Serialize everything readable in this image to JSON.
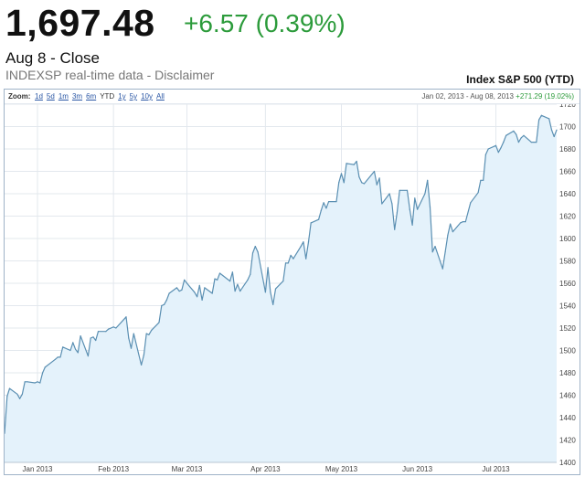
{
  "quote": {
    "price": "1,697.48",
    "change": "+6.57 (0.39%)",
    "date_close": "Aug 8 - Close",
    "source_text": "INDEXSP real-time data - Disclaimer"
  },
  "chart_header": {
    "title": "Index S&P 500 (YTD)",
    "zoom_label": "Zoom:",
    "zoom_options": [
      "1d",
      "5d",
      "1m",
      "3m",
      "6m",
      "YTD",
      "1y",
      "5y",
      "10y",
      "All"
    ],
    "active_zoom": "YTD",
    "range_start": "Jan 02, 2013",
    "range_separator": "-",
    "range_end": "Aug 08, 2013",
    "range_change": "+271.29 (19.02%)"
  },
  "colors": {
    "line": "#5a8fb2",
    "fill": "#e4f2fb",
    "grid": "#e3e8ee",
    "up": "#2c9b3b"
  },
  "chart_data": {
    "type": "area",
    "title": "Index S&P 500 (YTD)",
    "xlabel": "",
    "ylabel": "",
    "ylim": [
      1400,
      1720
    ],
    "xlim": [
      "2013-01-02",
      "2013-08-08"
    ],
    "y_ticks": [
      1400,
      1420,
      1440,
      1460,
      1480,
      1500,
      1520,
      1540,
      1560,
      1580,
      1600,
      1620,
      1640,
      1660,
      1680,
      1700,
      1720
    ],
    "x_month_labels": [
      {
        "label": "Jan 2013",
        "date": "2013-01-15"
      },
      {
        "label": "Feb 2013",
        "date": "2013-02-14"
      },
      {
        "label": "Mar 2013",
        "date": "2013-03-15"
      },
      {
        "label": "Apr 2013",
        "date": "2013-04-15"
      },
      {
        "label": "May 2013",
        "date": "2013-05-15"
      },
      {
        "label": "Jun 2013",
        "date": "2013-06-14"
      },
      {
        "label": "Jul 2013",
        "date": "2013-07-15"
      }
    ],
    "grid": true,
    "series": [
      {
        "points": [
          [
            "2013-01-02",
            1426
          ],
          [
            "2013-01-03",
            1459
          ],
          [
            "2013-01-04",
            1466
          ],
          [
            "2013-01-07",
            1461
          ],
          [
            "2013-01-08",
            1457
          ],
          [
            "2013-01-09",
            1461
          ],
          [
            "2013-01-10",
            1472
          ],
          [
            "2013-01-11",
            1472
          ],
          [
            "2013-01-14",
            1471
          ],
          [
            "2013-01-15",
            1472
          ],
          [
            "2013-01-16",
            1471
          ],
          [
            "2013-01-17",
            1480
          ],
          [
            "2013-01-18",
            1485
          ],
          [
            "2013-01-22",
            1492
          ],
          [
            "2013-01-23",
            1494
          ],
          [
            "2013-01-24",
            1494
          ],
          [
            "2013-01-25",
            1503
          ],
          [
            "2013-01-28",
            1500
          ],
          [
            "2013-01-29",
            1507
          ],
          [
            "2013-01-30",
            1501
          ],
          [
            "2013-01-31",
            1498
          ],
          [
            "2013-02-01",
            1513
          ],
          [
            "2013-02-04",
            1495
          ],
          [
            "2013-02-05",
            1511
          ],
          [
            "2013-02-06",
            1512
          ],
          [
            "2013-02-07",
            1509
          ],
          [
            "2013-02-08",
            1517
          ],
          [
            "2013-02-11",
            1517
          ],
          [
            "2013-02-12",
            1519
          ],
          [
            "2013-02-13",
            1520
          ],
          [
            "2013-02-14",
            1521
          ],
          [
            "2013-02-15",
            1520
          ],
          [
            "2013-02-19",
            1530
          ],
          [
            "2013-02-20",
            1511
          ],
          [
            "2013-02-21",
            1502
          ],
          [
            "2013-02-22",
            1515
          ],
          [
            "2013-02-25",
            1487
          ],
          [
            "2013-02-26",
            1496
          ],
          [
            "2013-02-27",
            1515
          ],
          [
            "2013-02-28",
            1514
          ],
          [
            "2013-03-01",
            1518
          ],
          [
            "2013-03-04",
            1525
          ],
          [
            "2013-03-05",
            1540
          ],
          [
            "2013-03-06",
            1541
          ],
          [
            "2013-03-07",
            1545
          ],
          [
            "2013-03-08",
            1551
          ],
          [
            "2013-03-11",
            1556
          ],
          [
            "2013-03-12",
            1553
          ],
          [
            "2013-03-13",
            1554
          ],
          [
            "2013-03-14",
            1563
          ],
          [
            "2013-03-15",
            1560
          ],
          [
            "2013-03-18",
            1552
          ],
          [
            "2013-03-19",
            1548
          ],
          [
            "2013-03-20",
            1558
          ],
          [
            "2013-03-21",
            1545
          ],
          [
            "2013-03-22",
            1556
          ],
          [
            "2013-03-25",
            1551
          ],
          [
            "2013-03-26",
            1564
          ],
          [
            "2013-03-27",
            1563
          ],
          [
            "2013-03-28",
            1569
          ],
          [
            "2013-04-01",
            1562
          ],
          [
            "2013-04-02",
            1570
          ],
          [
            "2013-04-03",
            1553
          ],
          [
            "2013-04-04",
            1559
          ],
          [
            "2013-04-05",
            1553
          ],
          [
            "2013-04-08",
            1563
          ],
          [
            "2013-04-09",
            1568
          ],
          [
            "2013-04-10",
            1587
          ],
          [
            "2013-04-11",
            1593
          ],
          [
            "2013-04-12",
            1588
          ],
          [
            "2013-04-15",
            1552
          ],
          [
            "2013-04-16",
            1574
          ],
          [
            "2013-04-17",
            1552
          ],
          [
            "2013-04-18",
            1541
          ],
          [
            "2013-04-19",
            1555
          ],
          [
            "2013-04-22",
            1562
          ],
          [
            "2013-04-23",
            1578
          ],
          [
            "2013-04-24",
            1578
          ],
          [
            "2013-04-25",
            1585
          ],
          [
            "2013-04-26",
            1582
          ],
          [
            "2013-04-29",
            1593
          ],
          [
            "2013-04-30",
            1597
          ],
          [
            "2013-05-01",
            1582
          ],
          [
            "2013-05-02",
            1597
          ],
          [
            "2013-05-03",
            1614
          ],
          [
            "2013-05-06",
            1617
          ],
          [
            "2013-05-07",
            1625
          ],
          [
            "2013-05-08",
            1632
          ],
          [
            "2013-05-09",
            1627
          ],
          [
            "2013-05-10",
            1633
          ],
          [
            "2013-05-13",
            1633
          ],
          [
            "2013-05-14",
            1650
          ],
          [
            "2013-05-15",
            1658
          ],
          [
            "2013-05-16",
            1650
          ],
          [
            "2013-05-17",
            1667
          ],
          [
            "2013-05-20",
            1666
          ],
          [
            "2013-05-21",
            1669
          ],
          [
            "2013-05-22",
            1655
          ],
          [
            "2013-05-23",
            1650
          ],
          [
            "2013-05-24",
            1649
          ],
          [
            "2013-05-28",
            1660
          ],
          [
            "2013-05-29",
            1648
          ],
          [
            "2013-05-30",
            1654
          ],
          [
            "2013-05-31",
            1631
          ],
          [
            "2013-06-03",
            1640
          ],
          [
            "2013-06-04",
            1631
          ],
          [
            "2013-06-05",
            1608
          ],
          [
            "2013-06-06",
            1623
          ],
          [
            "2013-06-07",
            1643
          ],
          [
            "2013-06-10",
            1643
          ],
          [
            "2013-06-11",
            1626
          ],
          [
            "2013-06-12",
            1612
          ],
          [
            "2013-06-13",
            1636
          ],
          [
            "2013-06-14",
            1626
          ],
          [
            "2013-06-17",
            1640
          ],
          [
            "2013-06-18",
            1652
          ],
          [
            "2013-06-19",
            1628
          ],
          [
            "2013-06-20",
            1588
          ],
          [
            "2013-06-21",
            1593
          ],
          [
            "2013-06-24",
            1573
          ],
          [
            "2013-06-25",
            1588
          ],
          [
            "2013-06-26",
            1603
          ],
          [
            "2013-06-27",
            1613
          ],
          [
            "2013-06-28",
            1606
          ],
          [
            "2013-07-01",
            1614
          ],
          [
            "2013-07-02",
            1615
          ],
          [
            "2013-07-03",
            1615
          ],
          [
            "2013-07-05",
            1632
          ],
          [
            "2013-07-08",
            1641
          ],
          [
            "2013-07-09",
            1652
          ],
          [
            "2013-07-10",
            1652
          ],
          [
            "2013-07-11",
            1675
          ],
          [
            "2013-07-12",
            1680
          ],
          [
            "2013-07-15",
            1683
          ],
          [
            "2013-07-16",
            1677
          ],
          [
            "2013-07-17",
            1681
          ],
          [
            "2013-07-18",
            1686
          ],
          [
            "2013-07-19",
            1692
          ],
          [
            "2013-07-22",
            1696
          ],
          [
            "2013-07-23",
            1693
          ],
          [
            "2013-07-24",
            1686
          ],
          [
            "2013-07-25",
            1690
          ],
          [
            "2013-07-26",
            1692
          ],
          [
            "2013-07-29",
            1686
          ],
          [
            "2013-07-30",
            1686
          ],
          [
            "2013-07-31",
            1686
          ],
          [
            "2013-08-01",
            1706
          ],
          [
            "2013-08-02",
            1710
          ],
          [
            "2013-08-05",
            1707
          ],
          [
            "2013-08-06",
            1697
          ],
          [
            "2013-08-07",
            1691
          ],
          [
            "2013-08-08",
            1697
          ]
        ]
      }
    ]
  }
}
